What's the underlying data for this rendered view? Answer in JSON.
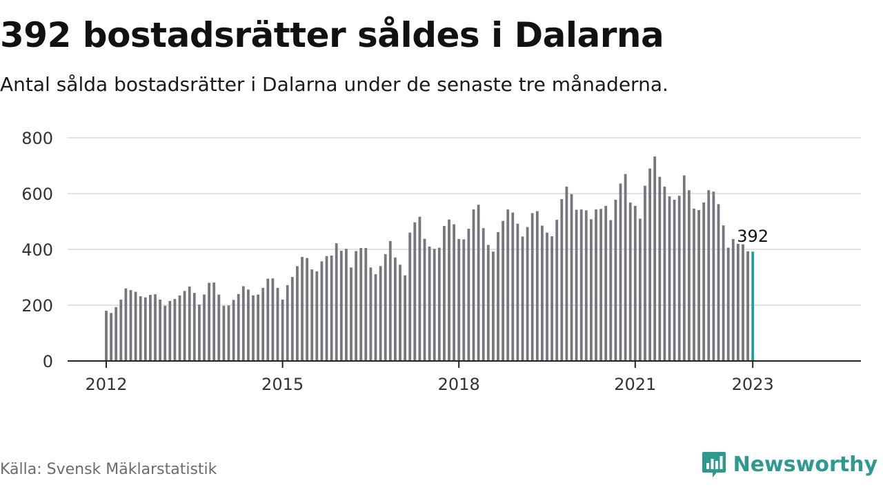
{
  "header": {
    "title": "392 bostadsrätter såldes i Dalarna",
    "subtitle": "Antal sålda bostadsrätter i Dalarna under de senaste tre månaderna."
  },
  "footer": {
    "source": "Källa: Svensk Mäklarstatistik",
    "brand": "Newsworthy",
    "brand_icon": "newsworthy-logo-icon"
  },
  "colors": {
    "bar": "#76767e",
    "highlight": "#18a3a0",
    "grid": "#d9d9d9",
    "axis": "#222222",
    "brand": "#2e9a8f"
  },
  "chart_data": {
    "type": "bar",
    "x_start": "2012-01",
    "x_ticks": [
      "2012",
      "2015",
      "2018",
      "2021",
      "2023"
    ],
    "x_tick_positions": [
      0,
      36,
      72,
      108,
      132
    ],
    "ylim": [
      0,
      800
    ],
    "y_ticks": [
      0,
      200,
      400,
      600,
      800
    ],
    "grid": true,
    "highlight_last": true,
    "last_label": "392",
    "values": [
      180,
      172,
      193,
      220,
      260,
      254,
      248,
      232,
      228,
      237,
      239,
      220,
      198,
      215,
      222,
      235,
      251,
      267,
      244,
      202,
      238,
      280,
      281,
      238,
      198,
      199,
      219,
      240,
      268,
      256,
      235,
      238,
      262,
      295,
      296,
      262,
      220,
      272,
      301,
      340,
      373,
      369,
      328,
      321,
      357,
      376,
      378,
      422,
      395,
      402,
      335,
      394,
      405,
      405,
      335,
      311,
      340,
      383,
      430,
      371,
      345,
      307,
      460,
      497,
      517,
      438,
      410,
      402,
      406,
      484,
      507,
      490,
      437,
      436,
      474,
      543,
      560,
      476,
      416,
      392,
      462,
      502,
      543,
      532,
      492,
      446,
      480,
      530,
      537,
      485,
      460,
      447,
      506,
      580,
      625,
      598,
      542,
      543,
      540,
      508,
      543,
      545,
      556,
      505,
      578,
      636,
      670,
      568,
      556,
      510,
      628,
      690,
      733,
      660,
      625,
      590,
      578,
      592,
      665,
      612,
      546,
      541,
      568,
      612,
      607,
      562,
      486,
      406,
      437,
      420,
      418,
      393,
      392
    ]
  }
}
